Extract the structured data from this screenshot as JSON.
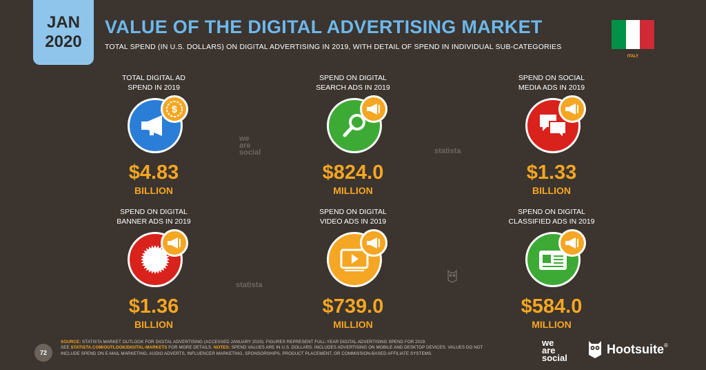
{
  "badge": {
    "month": "JAN",
    "year": "2020"
  },
  "title": "VALUE OF THE DIGITAL ADVERTISING MARKET",
  "subtitle": "TOTAL SPEND (IN U.S. DOLLARS) ON DIGITAL ADVERTISING IN 2019, WITH DETAIL OF SPEND IN INDIVIDUAL SUB-CATEGORIES",
  "country": {
    "name": "ITALY",
    "flag_colors": [
      "#009246",
      "#ffffff",
      "#ce2b37"
    ]
  },
  "cards": [
    {
      "label": "TOTAL DIGITAL AD\nSPEND IN 2019",
      "value": "$4.83",
      "unit": "BILLION",
      "color": "#2a7ed8",
      "icon": "megaphone-icon"
    },
    {
      "label": "SPEND ON DIGITAL\nSEARCH ADS IN 2019",
      "value": "$824.0",
      "unit": "MILLION",
      "color": "#3daa35",
      "icon": "magnifier-icon"
    },
    {
      "label": "SPEND ON SOCIAL\nMEDIA ADS IN 2019",
      "value": "$1.33",
      "unit": "BILLION",
      "color": "#d9221c",
      "icon": "chat-bubbles-icon"
    },
    {
      "label": "SPEND ON DIGITAL\nBANNER ADS IN 2019",
      "value": "$1.36",
      "unit": "BILLION",
      "color": "#d9221c",
      "icon": "starburst-icon"
    },
    {
      "label": "SPEND ON DIGITAL\nVIDEO ADS IN 2019",
      "value": "$739.0",
      "unit": "MILLION",
      "color": "#f5a623",
      "icon": "video-player-icon"
    },
    {
      "label": "SPEND ON DIGITAL\nCLASSIFIED ADS IN 2019",
      "value": "$584.0",
      "unit": "MILLION",
      "color": "#3daa35",
      "icon": "classified-card-icon"
    }
  ],
  "watermarks": {
    "we_are_social": "we\nare\nsocial",
    "statista": "statista"
  },
  "page_number": "72",
  "footer": {
    "source_label": "SOURCE:",
    "source_text": " STATISTA MARKET OUTLOOK FOR DIGITAL ADVERTISING (ACCESSED JANUARY 2020). FIGURES REPRESENT FULL-YEAR DIGITAL ADVERTISING SPEND FOR 2019.",
    "see_text": "SEE ",
    "link": "STATISTA.COM/OUTLOOK/DIGITAL-MARKETS",
    "more_text": " FOR MORE DETAILS. ",
    "notes_label": "NOTES:",
    "notes_text": " SPEND VALUES ARE IN U.S. DOLLARS. INCLUDES ADVERTISING ON MOBILE AND DESKTOP DEVICES. VALUES DO NOT INCLUDE SPEND ON E-MAIL MARKETING, AUDIO ADVERTS, INFLUENCER MARKETING, SPONSORSHIPS, PRODUCT PLACEMENT, OR COMMISSION-BASED AFFILIATE SYSTEMS."
  },
  "logos": {
    "we_are_social": "we\nare\nsocial",
    "hootsuite": "Hootsuite",
    "registered": "®"
  }
}
